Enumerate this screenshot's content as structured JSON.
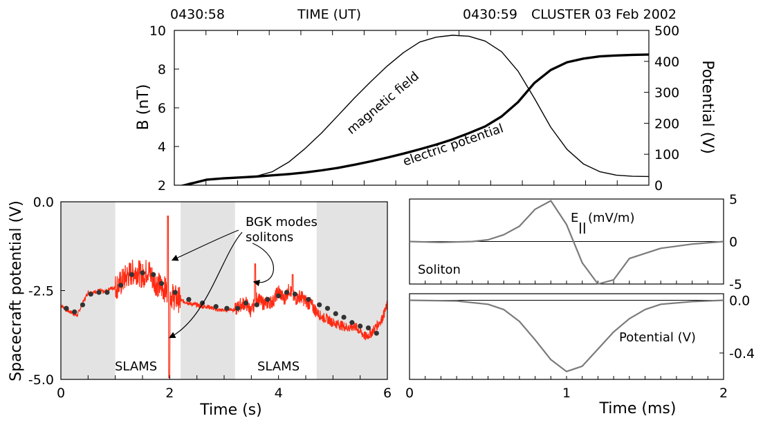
{
  "colors": {
    "shade": "#e3e3e3",
    "red_trace": "#ff2a12",
    "dot": "#333333",
    "gray_trace": "#7a7a7a",
    "axis": "#000000"
  },
  "header": {
    "time_left": "0430:58",
    "time_title": "TIME (UT)",
    "time_right": "0430:59",
    "mission_date": "CLUSTER 03 Feb 2002"
  },
  "chart_data": [
    {
      "id": "top",
      "type": "line",
      "ylabel_left": "B (nT)",
      "ylabel_right": "Potential  (V)",
      "ylim_left": [
        2,
        10
      ],
      "ylim_right": [
        0,
        500
      ],
      "yticks_left": [
        "2",
        "4",
        "6",
        "8",
        "10"
      ],
      "yticks_right": [
        "0",
        "100",
        "200",
        "300",
        "400",
        "500"
      ],
      "series": [
        {
          "name": "magnetic field",
          "axis": "left",
          "values": [
            1.86,
            2.12,
            2.26,
            2.33,
            2.38,
            2.46,
            2.7,
            3.2,
            3.9,
            4.7,
            5.6,
            6.5,
            7.35,
            8.15,
            8.85,
            9.4,
            9.65,
            9.75,
            9.7,
            9.45,
            8.9,
            7.9,
            6.5,
            5.0,
            3.85,
            3.1,
            2.7,
            2.52,
            2.46,
            2.45
          ]
        },
        {
          "name": "electric potential",
          "axis": "right",
          "values": [
            -8,
            5,
            18,
            22,
            25,
            28,
            32,
            36,
            41,
            48,
            56,
            66,
            77,
            89,
            102,
            116,
            131,
            148,
            168,
            190,
            222,
            268,
            330,
            372,
            397,
            409,
            416,
            419,
            421,
            422
          ]
        }
      ]
    },
    {
      "id": "bottom-left",
      "type": "line",
      "xlabel": "Time (s)",
      "ylabel": "Spacecraft potential (V)",
      "xlim": [
        0,
        6
      ],
      "ylim": [
        -5.0,
        0.0
      ],
      "xticks": [
        "0",
        "2",
        "4",
        "6"
      ],
      "yticks": [
        "0.0",
        "-2.5",
        "-5.0"
      ],
      "shaded_intervals": [
        [
          0,
          1.0
        ],
        [
          2.2,
          3.2
        ],
        [
          4.7,
          6.0
        ]
      ],
      "series": [
        {
          "name": "",
          "style": "red-noisy",
          "x": [
            0.0,
            0.1,
            0.2,
            0.3,
            0.4,
            0.5,
            0.6,
            0.7,
            0.8,
            0.9,
            1.0,
            1.1,
            1.2,
            1.3,
            1.4,
            1.5,
            1.6,
            1.7,
            1.8,
            1.9,
            2.0,
            2.1,
            2.2,
            2.3,
            2.4,
            2.5,
            2.6,
            2.7,
            2.8,
            2.9,
            3.0,
            3.1,
            3.2,
            3.3,
            3.4,
            3.5,
            3.6,
            3.7,
            3.8,
            3.9,
            4.0,
            4.1,
            4.2,
            4.3,
            4.4,
            4.5,
            4.6,
            4.7,
            4.8,
            4.9,
            5.0,
            5.1,
            5.2,
            5.3,
            5.4,
            5.5,
            5.6,
            5.7,
            5.8,
            5.9,
            6.0
          ],
          "values": [
            -2.9,
            -3.05,
            -3.12,
            -3.2,
            -2.85,
            -2.55,
            -2.55,
            -2.5,
            -2.55,
            -2.45,
            -2.4,
            -2.3,
            -2.1,
            -2.0,
            -1.95,
            -2.1,
            -1.9,
            -2.2,
            -2.35,
            -2.45,
            -2.6,
            -2.7,
            -2.78,
            -2.82,
            -2.88,
            -2.9,
            -2.95,
            -2.95,
            -3.0,
            -3.05,
            -3.05,
            -3.02,
            -3.05,
            -2.9,
            -2.85,
            -3.1,
            -2.7,
            -2.85,
            -2.85,
            -2.8,
            -2.5,
            -2.75,
            -2.45,
            -2.75,
            -2.65,
            -2.8,
            -2.9,
            -3.1,
            -3.25,
            -3.3,
            -3.4,
            -3.45,
            -3.5,
            -3.55,
            -3.5,
            -3.65,
            -3.8,
            -3.7,
            -3.5,
            -3.3,
            -2.9
          ]
        }
      ],
      "dots": {
        "x": [
          0.1,
          0.25,
          0.4,
          0.55,
          0.7,
          0.85,
          1.1,
          1.3,
          1.5,
          1.7,
          1.85,
          2.1,
          2.35,
          2.6,
          2.85,
          3.05,
          3.25,
          3.4,
          3.6,
          3.8,
          4.0,
          4.15,
          4.3,
          4.55,
          4.75,
          4.9,
          5.05,
          5.2,
          5.35,
          5.5,
          5.65,
          5.8
        ],
        "values": [
          -3.0,
          -3.1,
          -2.9,
          -2.6,
          -2.55,
          -2.55,
          -2.35,
          -2.05,
          -2.0,
          -2.05,
          -2.3,
          -2.55,
          -2.75,
          -2.85,
          -2.95,
          -3.0,
          -3.0,
          -2.85,
          -2.9,
          -2.75,
          -2.65,
          -2.55,
          -2.6,
          -2.75,
          -2.9,
          -3.0,
          -3.15,
          -3.25,
          -3.4,
          -3.5,
          -3.55,
          -3.7
        ]
      },
      "annotations": {
        "bgk": "BGK modes",
        "solitons": "solitons",
        "slams_1": "SLAMS",
        "slams_2": "SLAMS"
      }
    },
    {
      "id": "bottom-right-top",
      "type": "line",
      "ylim": [
        -5,
        5
      ],
      "yticks": [
        "5",
        "0",
        "-5"
      ],
      "label_main": "E",
      "label_sub": "||",
      "label_unit": "(mV/m)",
      "inner_label": "Soliton",
      "series": [
        {
          "name": "",
          "x": [
            0.0,
            0.2,
            0.4,
            0.5,
            0.6,
            0.7,
            0.8,
            0.9,
            1.0,
            1.1,
            1.2,
            1.3,
            1.4,
            1.6,
            1.8,
            2.0
          ],
          "values": [
            0.0,
            -0.1,
            0.0,
            0.2,
            0.8,
            1.8,
            3.8,
            4.8,
            2.0,
            -2.5,
            -5.0,
            -4.5,
            -2.0,
            -0.8,
            -0.3,
            0.0
          ]
        }
      ]
    },
    {
      "id": "bottom-right-bottom",
      "type": "line",
      "xlabel": "Time (ms)",
      "xlim": [
        0,
        2
      ],
      "xticks": [
        "0",
        "1",
        "2"
      ],
      "ylim": [
        -0.6,
        0.05
      ],
      "yticks": [
        "0.0",
        "-0.4"
      ],
      "inner_label": "Potential (V)",
      "series": [
        {
          "name": "",
          "x": [
            0.0,
            0.3,
            0.5,
            0.6,
            0.7,
            0.8,
            0.9,
            1.0,
            1.1,
            1.2,
            1.3,
            1.4,
            1.5,
            1.6,
            1.8,
            2.0
          ],
          "values": [
            0.0,
            -0.005,
            -0.03,
            -0.07,
            -0.16,
            -0.3,
            -0.45,
            -0.54,
            -0.5,
            -0.37,
            -0.24,
            -0.14,
            -0.07,
            -0.03,
            -0.01,
            0.0
          ]
        }
      ]
    }
  ]
}
